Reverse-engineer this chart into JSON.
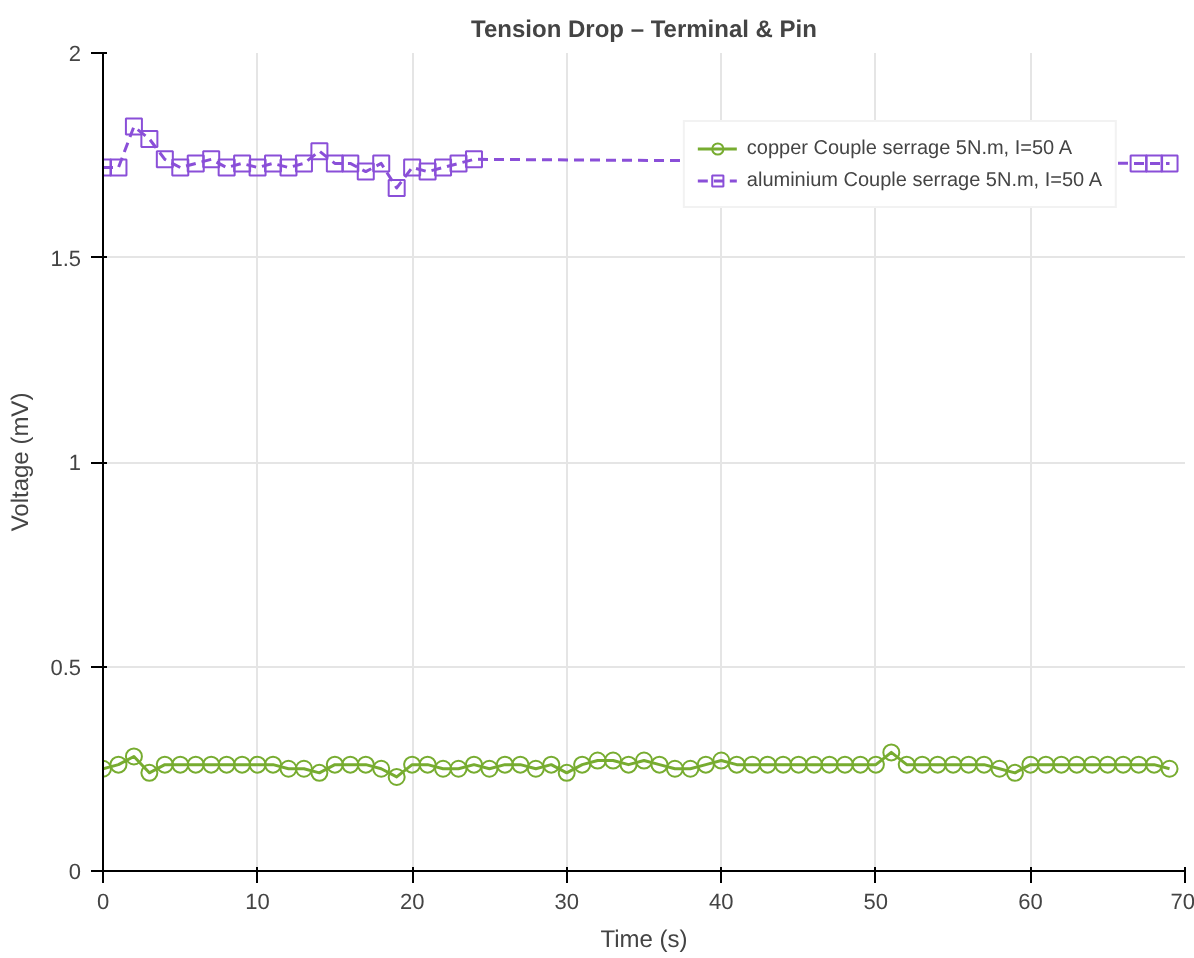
{
  "chart_data": {
    "type": "line",
    "title": "Tension Drop – Terminal & Pin",
    "xlabel": "Time (s)",
    "ylabel": "Voltage (mV)",
    "x": [
      0,
      1,
      2,
      3,
      4,
      5,
      6,
      7,
      8,
      9,
      10,
      11,
      12,
      13,
      14,
      15,
      16,
      17,
      18,
      19,
      20,
      21,
      22,
      23,
      24,
      25,
      26,
      27,
      28,
      29,
      30,
      31,
      32,
      33,
      34,
      35,
      36,
      37,
      38,
      39,
      40,
      41,
      42,
      43,
      44,
      45,
      46,
      47,
      48,
      49,
      50,
      51,
      52,
      53,
      54,
      55,
      56,
      57,
      58,
      59,
      60,
      61,
      62,
      63,
      64,
      65,
      66,
      67,
      68,
      69
    ],
    "series": [
      {
        "name": "copper Couple serrage 5N.m, I=50 A",
        "color": "#77ac30",
        "marker": "circle",
        "line_style": "solid",
        "values": [
          0.25,
          0.26,
          0.28,
          0.24,
          0.26,
          0.26,
          0.26,
          0.26,
          0.26,
          0.26,
          0.26,
          0.26,
          0.25,
          0.25,
          0.24,
          0.26,
          0.26,
          0.26,
          0.25,
          0.23,
          0.26,
          0.26,
          0.25,
          0.25,
          0.26,
          0.25,
          0.26,
          0.26,
          0.25,
          0.26,
          0.24,
          0.26,
          0.27,
          0.27,
          0.26,
          0.27,
          0.26,
          0.25,
          0.25,
          0.26,
          0.27,
          0.26,
          0.26,
          0.26,
          0.26,
          0.26,
          0.26,
          0.26,
          0.26,
          0.26,
          0.26,
          0.29,
          0.26,
          0.26,
          0.26,
          0.26,
          0.26,
          0.26,
          0.25,
          0.24,
          0.26,
          0.26,
          0.26,
          0.26,
          0.26,
          0.26,
          0.26,
          0.26,
          0.26,
          0.25
        ]
      },
      {
        "name": "aluminium Couple serrage 5N.m, I=50 A",
        "color": "#8a4fd8",
        "marker": "square",
        "line_style": "dashed",
        "x": [
          0,
          1,
          2,
          3,
          4,
          5,
          6,
          7,
          8,
          9,
          10,
          11,
          12,
          13,
          14,
          15,
          16,
          17,
          18,
          19,
          20,
          21,
          22,
          23,
          24,
          67,
          68,
          69
        ],
        "values": [
          1.72,
          1.72,
          1.82,
          1.79,
          1.74,
          1.72,
          1.73,
          1.74,
          1.72,
          1.73,
          1.72,
          1.73,
          1.72,
          1.73,
          1.76,
          1.73,
          1.73,
          1.71,
          1.73,
          1.67,
          1.72,
          1.71,
          1.72,
          1.73,
          1.74,
          1.73,
          1.73,
          1.73
        ]
      }
    ],
    "xlim": [
      0,
      70
    ],
    "xticks": [
      0,
      10,
      20,
      30,
      40,
      50,
      60,
      70
    ],
    "ylim": [
      0,
      2
    ],
    "yticks": [
      0,
      0.5,
      1,
      1.5,
      2
    ],
    "grid": true,
    "legend": "top right"
  }
}
